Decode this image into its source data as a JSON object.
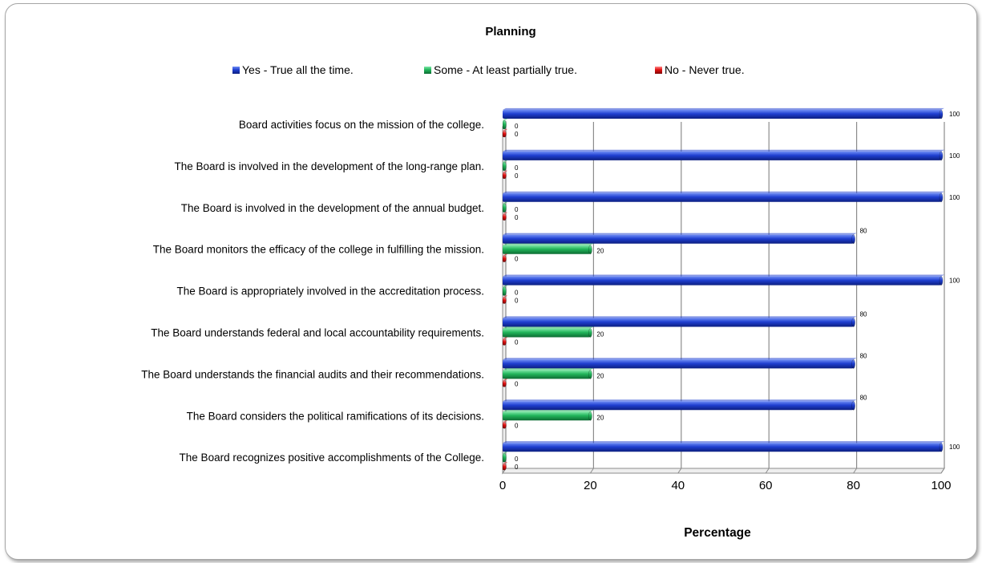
{
  "chart_data": {
    "type": "bar",
    "orientation": "horizontal",
    "title": "Planning",
    "xlabel": "Percentage",
    "ylabel": "",
    "xlim": [
      0,
      100
    ],
    "xticks": [
      0,
      20,
      40,
      60,
      80,
      100
    ],
    "grid": true,
    "legend_position": "top",
    "categories": [
      "Board activities focus on the mission of the college.",
      "The Board is involved in the development of the long-range plan.",
      "The Board is involved in the development of the annual budget.",
      "The Board monitors the efficacy of the college in fulfilling the mission.",
      "The Board is appropriately involved in the accreditation process.",
      "The Board understands federal and local accountability requirements.",
      "The Board understands the financial audits and their recommendations.",
      "The Board considers the political ramifications of its decisions.",
      "The Board recognizes positive accomplishments of the College."
    ],
    "series": [
      {
        "name": "Yes - True all the time.",
        "color": "#1f3fd0",
        "values": [
          100,
          100,
          100,
          80,
          100,
          80,
          80,
          80,
          100
        ]
      },
      {
        "name": "Some - At least partially true.",
        "color": "#21b45a",
        "values": [
          0,
          0,
          0,
          20,
          0,
          20,
          20,
          20,
          0
        ]
      },
      {
        "name": "No - Never true.",
        "color": "#e01010",
        "values": [
          0,
          0,
          0,
          0,
          0,
          0,
          0,
          0,
          0
        ]
      }
    ]
  }
}
